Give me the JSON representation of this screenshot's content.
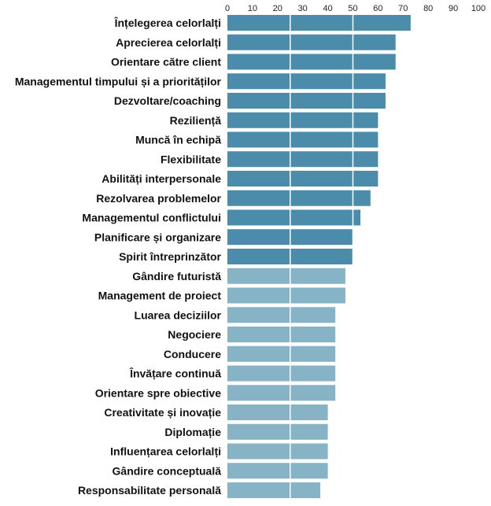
{
  "chart_data": {
    "type": "bar",
    "orientation": "horizontal",
    "title": "",
    "xlabel": "",
    "ylabel": "",
    "xlim": [
      0,
      100
    ],
    "xticks": [
      0,
      10,
      20,
      30,
      40,
      50,
      60,
      70,
      80,
      90,
      100
    ],
    "gridlines": [
      25,
      50
    ],
    "grid": true,
    "legend": "none",
    "colors": {
      "dark": "#4b8cab",
      "light": "#86b3c5",
      "grid": "#ffffff"
    },
    "categories": [
      "Înțelegerea celorlalți",
      "Aprecierea celorlalți",
      "Orientare către client",
      "Managementul timpului și a priorităților",
      "Dezvoltare/coaching",
      "Reziliență",
      "Muncă în echipă",
      "Flexibilitate",
      "Abilități interpersonale",
      "Rezolvarea problemelor",
      "Managementul conflictului",
      "Planificare și organizare",
      "Spirit întreprinzător",
      "Gândire futuristă",
      "Management de proiect",
      "Luarea deciziilor",
      "Negociere",
      "Conducere",
      "Învățare continuă",
      "Orientare spre obiective",
      "Creativitate și inovație",
      "Diplomație",
      "Influențarea celorlalți",
      "Gândire conceptuală",
      "Responsabilitate personală"
    ],
    "values": [
      73,
      67,
      67,
      63,
      63,
      60,
      60,
      60,
      60,
      57,
      53,
      50,
      50,
      47,
      47,
      43,
      43,
      43,
      43,
      43,
      40,
      40,
      40,
      40,
      37
    ],
    "shade": [
      "dark",
      "dark",
      "dark",
      "dark",
      "dark",
      "dark",
      "dark",
      "dark",
      "dark",
      "dark",
      "dark",
      "dark",
      "dark",
      "light",
      "light",
      "light",
      "light",
      "light",
      "light",
      "light",
      "light",
      "light",
      "light",
      "light",
      "light"
    ]
  }
}
